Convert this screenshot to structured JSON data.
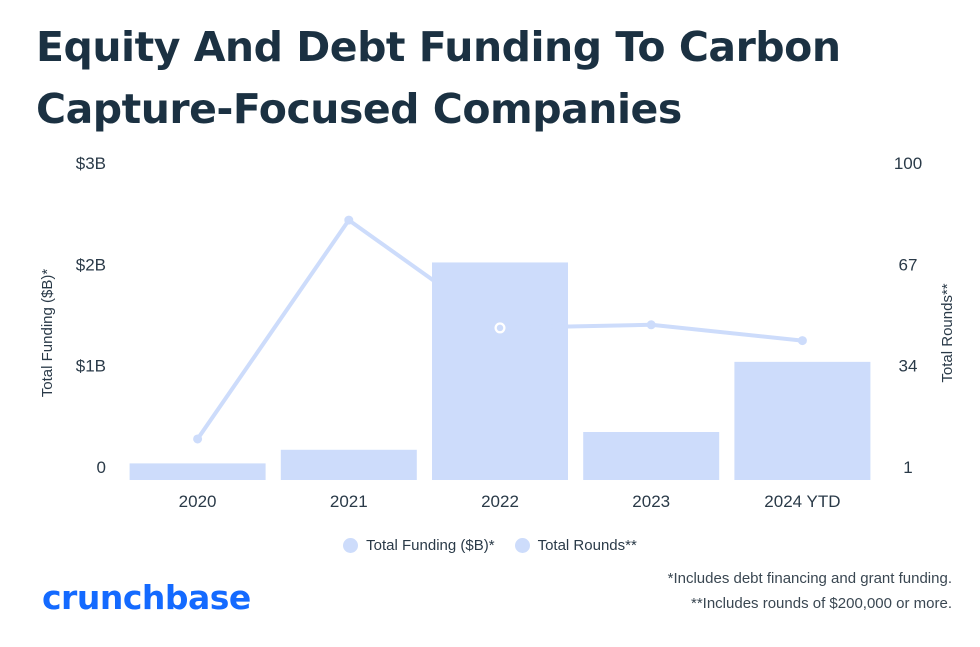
{
  "title": "Equity And Debt Funding To Carbon Capture-Focused Companies",
  "colors": {
    "bar": "#cddcfb",
    "line": "#cddcfb",
    "text": "#1b3142",
    "brand": "#146aff"
  },
  "legend": {
    "funding": "Total Funding ($B)*",
    "rounds": "Total Rounds**"
  },
  "notes": {
    "note1": "*Includes debt financing and grant funding.",
    "note2": "**Includes rounds of $200,000 or more."
  },
  "brand": {
    "name": "crunchbase"
  },
  "chart_data": {
    "type": "bar",
    "categories": [
      "2020",
      "2021",
      "2022",
      "2023",
      "2024 YTD"
    ],
    "series": [
      {
        "name": "Total Funding ($B)*",
        "type": "bar",
        "axis": "left",
        "values": [
          0.13,
          0.26,
          2.05,
          0.43,
          1.1
        ]
      },
      {
        "name": "Total Rounds**",
        "type": "line",
        "axis": "right",
        "values": [
          13,
          82,
          48,
          49,
          44
        ]
      }
    ],
    "ylabel": "Total Funding ($B)*",
    "y2label": "Total Rounds**",
    "ylim": [
      0,
      3
    ],
    "y2lim": [
      1,
      100
    ],
    "yticks": [
      "0",
      "$1B",
      "$2B",
      "$3B"
    ],
    "yticks_values": [
      0,
      1,
      2,
      3
    ],
    "y2ticks": [
      "1",
      "34",
      "67",
      "100"
    ],
    "y2ticks_values": [
      1,
      34,
      67,
      100
    ],
    "grid": false,
    "legend_position": "bottom"
  }
}
